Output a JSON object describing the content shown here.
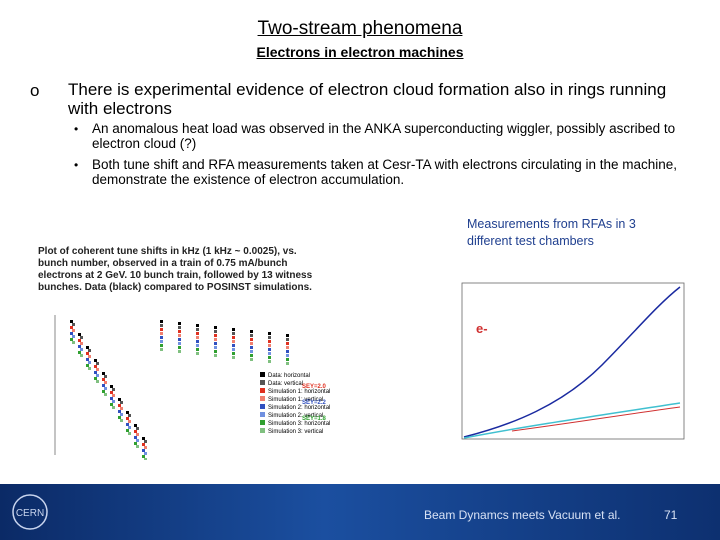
{
  "header": {
    "title": "Two-stream phenomena",
    "subtitle": "Electrons in electron machines"
  },
  "bullets": [
    {
      "marker": "o",
      "text": "There is experimental evidence of electron cloud formation also in rings running with electrons",
      "subbullets": [
        "An anomalous heat load was observed in the ANKA superconducting wiggler, possibly ascribed to electron cloud (?)",
        "Both tune shift and RFA measurements taken at Cesr-TA with electrons circulating in the machine, demonstrate the existence of electron accumulation."
      ]
    }
  ],
  "left_figure": {
    "caption": "Plot of coherent tune shifts in kHz (1 kHz ~ 0.0025), vs. bunch number, observed in a train of 0.75 mA/bunch electrons at 2 GeV. 10 bunch train, followed by 13 witness bunches. Data (black) compared to POSINST simulations.",
    "legend": [
      "Data: horizontal",
      "Data: vertical",
      "Simulation 1: horizontal",
      "Simulation 1: vertical",
      "Simulation 2: horizontal",
      "Simulation 2: vertical",
      "Simulation 3: horizontal",
      "Simulation 3: vertical"
    ],
    "sey_labels": [
      "SEY=2.0",
      "SEY=2.2",
      "SEY=1.8"
    ]
  },
  "right_figure": {
    "caption": "Measurements from RFAs in 3 different test chambers",
    "annotation": "e-"
  },
  "footer": {
    "logo": "CERN",
    "text": "Beam Dynamcs meets Vacuum et al.",
    "page": "71"
  }
}
